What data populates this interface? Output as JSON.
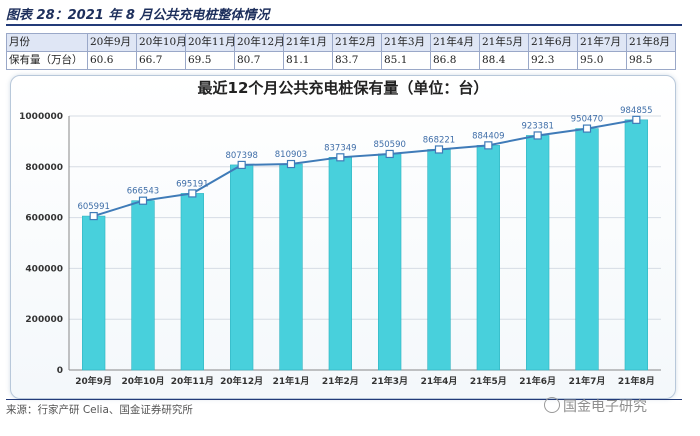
{
  "figure_label": "图表 28：2021 年 8 月公共充电桩整体情况",
  "summary_table": {
    "row_labels": [
      "月份",
      "保有量（万台）"
    ],
    "months": [
      "20年9月",
      "20年10月",
      "20年11月",
      "20年12月",
      "21年1月",
      "21年2月",
      "21年3月",
      "21年4月",
      "21年5月",
      "21年6月",
      "21年7月",
      "21年8月"
    ],
    "values": [
      "60.6",
      "66.7",
      "69.5",
      "80.7",
      "81.1",
      "83.7",
      "85.1",
      "86.8",
      "88.4",
      "92.3",
      "95.0",
      "98.5"
    ]
  },
  "chart_data": {
    "type": "bar",
    "title": "最近12个月公共充电桩保有量（单位：台）",
    "categories": [
      "20年9月",
      "20年10月",
      "20年11月",
      "20年12月",
      "21年1月",
      "21年2月",
      "21年3月",
      "21年4月",
      "21年5月",
      "21年6月",
      "21年7月",
      "21年8月"
    ],
    "series": [
      {
        "values": [
          605991,
          666543,
          695191,
          807398,
          810903,
          837349,
          850590,
          868221,
          884409,
          923381,
          950470,
          984855
        ]
      }
    ],
    "overlay_line": true,
    "yticks": [
      "0",
      "200000",
      "400000",
      "600000",
      "800000",
      "1000000"
    ],
    "ylim": [
      0,
      1000000
    ],
    "grid": true,
    "bar_color": "#48d0dc",
    "line_color": "#3f7bb8"
  },
  "source_text": "来源：行家产研 Celia、国金证券研究所",
  "watermark_text": "国金电子研究",
  "watermark_icon": "wechat-icon"
}
